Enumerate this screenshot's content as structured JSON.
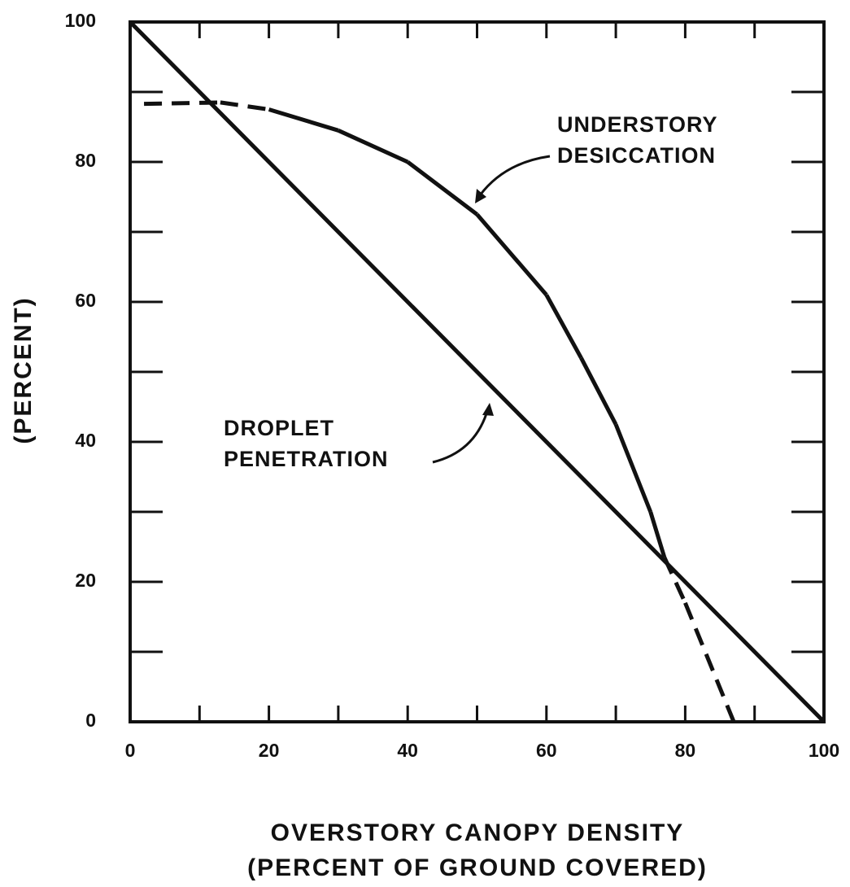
{
  "chart_data": {
    "type": "line",
    "x_label": [
      "OVERSTORY CANOPY DENSITY",
      "(PERCENT OF GROUND COVERED)"
    ],
    "y_label": "(PERCENT)",
    "xlim": [
      0,
      100
    ],
    "xticks": [
      0,
      20,
      40,
      60,
      80,
      100
    ],
    "ylim": [
      0,
      100
    ],
    "yticks": [
      0,
      20,
      40,
      60,
      80,
      100
    ],
    "series": [
      {
        "name": [
          "DROPLET",
          "PENETRATION"
        ],
        "color": "#111111",
        "x": [
          0,
          100
        ],
        "values": [
          100,
          0
        ],
        "dash": [
          false,
          false
        ]
      },
      {
        "name": [
          "UNDERSTORY",
          "DESICCATION"
        ],
        "color": "#111111",
        "x": [
          2,
          13,
          20,
          30,
          40,
          50,
          60,
          65,
          70,
          75,
          77,
          80,
          87
        ],
        "values": [
          88.3,
          88.5,
          87.5,
          84.5,
          80,
          72.5,
          61,
          52,
          42.5,
          30,
          23.5,
          17,
          0
        ],
        "dash": [
          true,
          true,
          false,
          false,
          false,
          false,
          false,
          false,
          false,
          false,
          true,
          true,
          true
        ]
      }
    ]
  }
}
